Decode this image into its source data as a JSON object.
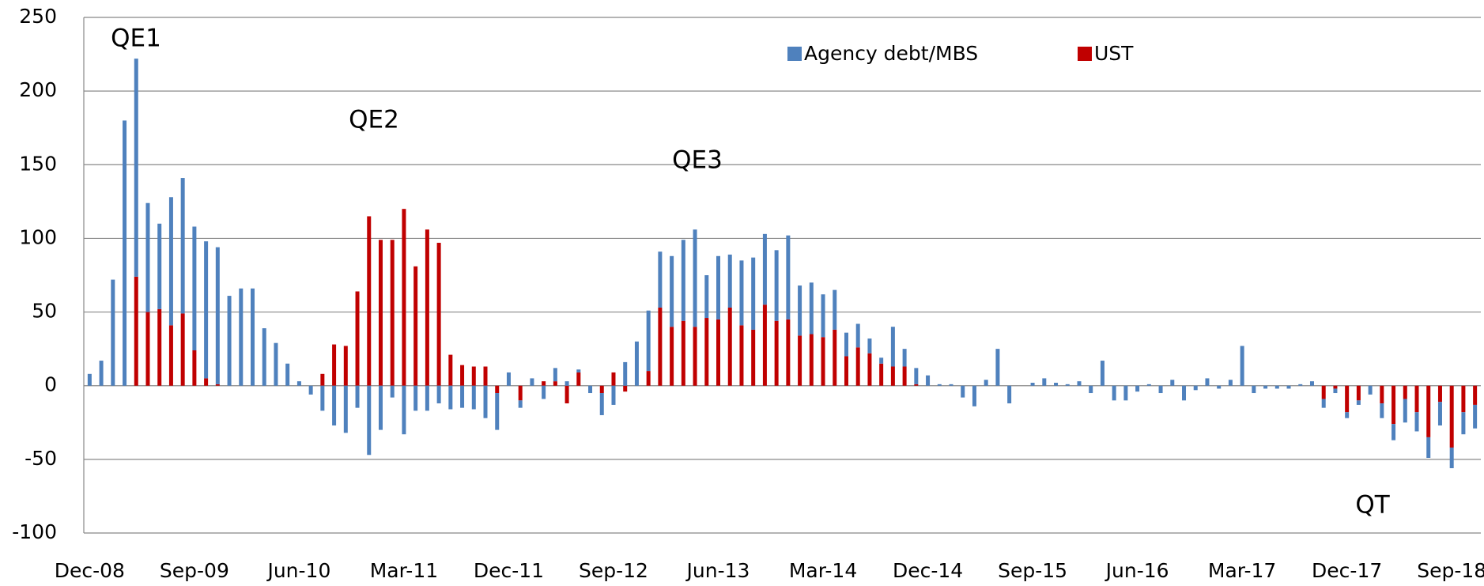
{
  "chart_data": {
    "type": "stacked_bar",
    "categories": [
      "Dec-08",
      null,
      null,
      null,
      null,
      null,
      null,
      null,
      null,
      "Sep-09",
      null,
      null,
      null,
      null,
      null,
      null,
      null,
      null,
      "Jun-10",
      null,
      null,
      null,
      null,
      null,
      null,
      null,
      null,
      "Mar-11",
      null,
      null,
      null,
      null,
      null,
      null,
      null,
      null,
      "Dec-11",
      null,
      null,
      null,
      null,
      null,
      null,
      null,
      null,
      "Sep-12",
      null,
      null,
      null,
      null,
      null,
      null,
      null,
      null,
      "Jun-13",
      null,
      null,
      null,
      null,
      null,
      null,
      null,
      null,
      "Mar-14",
      null,
      null,
      null,
      null,
      null,
      null,
      null,
      null,
      "Dec-14",
      null,
      null,
      null,
      null,
      null,
      null,
      null,
      null,
      "Sep-15",
      null,
      null,
      null,
      null,
      null,
      null,
      null,
      null,
      "Jun-16",
      null,
      null,
      null,
      null,
      null,
      null,
      null,
      null,
      "Mar-17",
      null,
      null,
      null,
      null,
      null,
      null,
      null,
      null,
      "Dec-17",
      null,
      null,
      null,
      null,
      null,
      null,
      null,
      null,
      "Sep-18",
      null,
      null
    ],
    "series": [
      {
        "name": "UST",
        "color": "#c00000",
        "values": [
          0,
          0,
          0,
          0,
          74,
          50,
          52,
          41,
          49,
          24,
          5,
          1,
          0,
          0,
          0,
          0,
          0,
          0,
          0,
          0,
          8,
          28,
          27,
          64,
          115,
          99,
          99,
          120,
          81,
          106,
          97,
          21,
          14,
          13,
          13,
          -5,
          0,
          -10,
          0,
          3,
          3,
          -12,
          9,
          0,
          -5,
          9,
          -4,
          0,
          10,
          53,
          40,
          44,
          40,
          46,
          45,
          53,
          41,
          38,
          55,
          44,
          45,
          34,
          35,
          33,
          38,
          20,
          26,
          22,
          15,
          13,
          13,
          1,
          0,
          0,
          0,
          0,
          0,
          0,
          0,
          0,
          0,
          0,
          0,
          0,
          0,
          0,
          0,
          0,
          0,
          0,
          0,
          0,
          0,
          0,
          0,
          0,
          0,
          0,
          0,
          0,
          0,
          0,
          0,
          0,
          0,
          0,
          -9,
          -2,
          -18,
          -10,
          0,
          -12,
          -26,
          -9,
          -18,
          -35,
          -11,
          -42,
          -18,
          -13
        ]
      },
      {
        "name": "Agency debt/MBS",
        "color": "#4f81bd",
        "values": [
          8,
          17,
          72,
          180,
          148,
          74,
          58,
          87,
          92,
          84,
          93,
          93,
          61,
          66,
          66,
          39,
          29,
          15,
          3,
          -6,
          -17,
          -27,
          -32,
          -15,
          -47,
          -30,
          -8,
          -33,
          -17,
          -17,
          -12,
          -16,
          -15,
          -16,
          -22,
          -25,
          9,
          -5,
          5,
          -9,
          9,
          3,
          2,
          -5,
          -15,
          -13,
          16,
          30,
          41,
          38,
          48,
          55,
          66,
          29,
          43,
          36,
          44,
          49,
          48,
          48,
          57,
          34,
          35,
          29,
          27,
          16,
          16,
          10,
          4,
          27,
          12,
          11,
          7,
          1,
          1,
          -8,
          -14,
          4,
          25,
          -12,
          0,
          2,
          5,
          2,
          1,
          3,
          -5,
          17,
          -10,
          -10,
          -4,
          1,
          -5,
          4,
          -10,
          -3,
          5,
          -2,
          4,
          27,
          -5,
          -2,
          -2,
          -2,
          1,
          3,
          -6,
          -3,
          -4,
          -3,
          -6,
          -10,
          -11,
          -16,
          -13,
          -14,
          -16,
          -14,
          -15,
          -16
        ]
      }
    ],
    "ylim": [
      -100,
      250
    ],
    "yticks": [
      -100,
      -50,
      0,
      50,
      100,
      150,
      200,
      250
    ],
    "grid": true,
    "annotations": [
      "QE1",
      "QE2",
      "QE3",
      "QT"
    ]
  }
}
